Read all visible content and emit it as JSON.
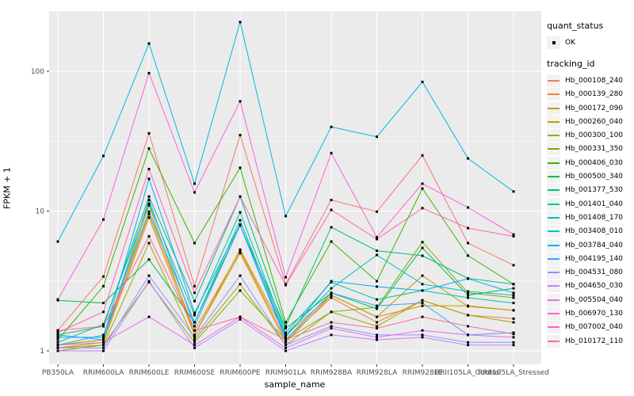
{
  "chart_data": {
    "type": "line",
    "title": "",
    "xlabel": "sample_name",
    "ylabel": "FPKM + 1",
    "y_scale": "log10",
    "y_ticks": [
      1,
      10,
      100
    ],
    "ylim": [
      0.85,
      280
    ],
    "grid": "white major gridlines at 1/10/100 and each category; minor at half-decades; grey panel",
    "legend_position": "right",
    "categories": [
      "PB350LA",
      "RRIM600LA",
      "RRIM600LE",
      "RRIM600SE",
      "RRIM600PE",
      "RRIM901LA",
      "RRIM928BA",
      "RRIM928LA",
      "RRIM928LE",
      "RRII105LA_Control",
      "RRII105LA_Stressed"
    ],
    "legend": {
      "quant_status_title": "quant_status",
      "quant_status_items": [
        {
          "label": "OK",
          "marker": "black-point"
        }
      ],
      "tracking_id_title": "tracking_id"
    },
    "panel_bg": "#EBEBEB",
    "grid_color": "#FFFFFF",
    "tick_label_color": "#4D4D4D",
    "point_color": "#000000",
    "series": [
      {
        "name": "Hb_000108_240",
        "color": "#F8766D",
        "quant_status": "OK",
        "values": [
          1.4,
          3.4,
          36,
          2.9,
          35,
          3.0,
          12,
          9.9,
          25,
          5.9,
          4.1
        ]
      },
      {
        "name": "Hb_000139_280",
        "color": "#EA8331",
        "quant_status": "OK",
        "values": [
          1.1,
          1.2,
          9.5,
          1.4,
          5.2,
          1.2,
          2.4,
          1.6,
          2.3,
          1.8,
          1.7
        ]
      },
      {
        "name": "Hb_000172_090",
        "color": "#D89000",
        "quant_status": "OK",
        "values": [
          1.05,
          1.15,
          9.0,
          1.3,
          5.0,
          1.15,
          2.5,
          1.75,
          2.1,
          2.1,
          1.95
        ]
      },
      {
        "name": "Hb_000260_040",
        "color": "#C09B00",
        "quant_status": "OK",
        "values": [
          1.1,
          1.2,
          11,
          1.3,
          5.3,
          1.3,
          2.5,
          1.75,
          3.45,
          2.08,
          1.95
        ]
      },
      {
        "name": "Hb_000300_100",
        "color": "#A3A500",
        "quant_status": "OK",
        "values": [
          1.05,
          1.1,
          5.9,
          1.2,
          3.0,
          1.1,
          1.9,
          1.5,
          2.3,
          1.8,
          1.6
        ]
      },
      {
        "name": "Hb_000331_350",
        "color": "#7CAE00",
        "quant_status": "OK",
        "values": [
          1.0,
          1.1,
          3.1,
          1.15,
          2.7,
          1.2,
          1.9,
          2.05,
          6.0,
          2.6,
          2.4
        ]
      },
      {
        "name": "Hb_000406_030",
        "color": "#39B600",
        "quant_status": "OK",
        "values": [
          1.2,
          2.9,
          28,
          5.9,
          20.4,
          1.6,
          6.05,
          3.15,
          14.5,
          4.8,
          3.0
        ]
      },
      {
        "name": "Hb_000500_340",
        "color": "#00BB4E",
        "quant_status": "OK",
        "values": [
          2.3,
          2.2,
          4.5,
          1.6,
          7.9,
          1.45,
          2.6,
          2.0,
          5.45,
          2.5,
          2.8
        ]
      },
      {
        "name": "Hb_001377_530",
        "color": "#00BF7D",
        "quant_status": "OK",
        "values": [
          1.3,
          1.5,
          12.7,
          2.27,
          12.7,
          1.5,
          7.66,
          5.2,
          4.79,
          3.3,
          3.0
        ]
      },
      {
        "name": "Hb_001401_040",
        "color": "#00C1A3",
        "quant_status": "OK",
        "values": [
          1.15,
          1.55,
          11.3,
          1.8,
          9.8,
          1.35,
          3.1,
          2.33,
          2.7,
          2.4,
          2.2
        ]
      },
      {
        "name": "Hb_001408_170",
        "color": "#00BFC4",
        "quant_status": "OK",
        "values": [
          1.1,
          1.3,
          9.9,
          1.6,
          8.6,
          1.3,
          2.8,
          4.85,
          3.0,
          2.66,
          2.5
        ]
      },
      {
        "name": "Hb_003408_010",
        "color": "#00BAE0",
        "quant_status": "OK",
        "values": [
          6.05,
          24.8,
          158,
          15.7,
          225,
          9.2,
          40,
          34,
          84,
          23.8,
          13.8
        ]
      },
      {
        "name": "Hb_003784_040",
        "color": "#00B0F6",
        "quant_status": "OK",
        "values": [
          1.25,
          1.25,
          17,
          1.87,
          8.0,
          1.25,
          3.15,
          2.88,
          2.7,
          3.28,
          2.6
        ]
      },
      {
        "name": "Hb_004195_140",
        "color": "#35A2FF",
        "quant_status": "OK",
        "values": [
          1.3,
          1.2,
          12,
          1.5,
          7.9,
          1.2,
          2.6,
          2.1,
          2.2,
          1.3,
          1.35
        ]
      },
      {
        "name": "Hb_004531_080",
        "color": "#9590FF",
        "quant_status": "OK",
        "values": [
          1.05,
          1.05,
          3.45,
          1.25,
          3.45,
          1.1,
          1.5,
          1.3,
          1.3,
          1.15,
          1.15
        ]
      },
      {
        "name": "Hb_004650_030",
        "color": "#C77CFF",
        "quant_status": "OK",
        "values": [
          1.0,
          1.0,
          3.15,
          1.05,
          1.68,
          1.0,
          1.3,
          1.2,
          1.25,
          1.1,
          1.1
        ]
      },
      {
        "name": "Hb_005504_040",
        "color": "#E76BF3",
        "quant_status": "OK",
        "values": [
          1.1,
          1.15,
          1.75,
          1.1,
          1.75,
          1.05,
          1.45,
          1.25,
          1.4,
          1.3,
          1.25
        ]
      },
      {
        "name": "Hb_006970_130",
        "color": "#FA62DB",
        "quant_status": "OK",
        "values": [
          2.33,
          8.7,
          97,
          13.6,
          61,
          3.36,
          26,
          6.5,
          15.7,
          10.6,
          6.8
        ]
      },
      {
        "name": "Hb_007002_040",
        "color": "#FF62BC",
        "quant_status": "OK",
        "values": [
          1.35,
          1.9,
          20,
          2.6,
          12.7,
          2.95,
          10.2,
          6.3,
          10.5,
          7.55,
          6.6
        ]
      },
      {
        "name": "Hb_010172_110",
        "color": "#FF6A98",
        "quant_status": "OK",
        "values": [
          1.4,
          1.5,
          6.6,
          1.4,
          1.75,
          1.2,
          1.6,
          1.45,
          1.75,
          1.5,
          1.32
        ]
      }
    ]
  }
}
